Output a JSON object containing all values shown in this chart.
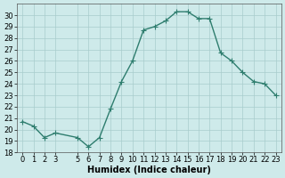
{
  "x": [
    0,
    1,
    2,
    3,
    5,
    6,
    7,
    8,
    9,
    10,
    11,
    12,
    13,
    14,
    15,
    16,
    17,
    18,
    19,
    20,
    21,
    22,
    23
  ],
  "y": [
    20.7,
    20.3,
    19.3,
    19.7,
    19.3,
    18.5,
    19.3,
    21.8,
    24.2,
    26.0,
    28.7,
    29.0,
    29.5,
    30.3,
    30.3,
    29.7,
    29.7,
    26.7,
    26.0,
    25.0,
    24.2,
    24.0,
    23.0
  ],
  "line_color": "#2e7d6e",
  "marker": "+",
  "marker_size": 4,
  "linewidth": 1.0,
  "xlabel": "Humidex (Indice chaleur)",
  "xlim": [
    -0.5,
    23.5
  ],
  "ylim": [
    18,
    31
  ],
  "yticks": [
    18,
    19,
    20,
    21,
    22,
    23,
    24,
    25,
    26,
    27,
    28,
    29,
    30
  ],
  "xtick_positions": [
    0,
    1,
    2,
    3,
    5,
    6,
    7,
    8,
    9,
    10,
    11,
    12,
    13,
    14,
    15,
    16,
    17,
    18,
    19,
    20,
    21,
    22,
    23
  ],
  "xtick_labels": [
    "0",
    "1",
    "2",
    "3",
    "5",
    "6",
    "7",
    "8",
    "9",
    "10",
    "11",
    "12",
    "13",
    "14",
    "15",
    "16",
    "17",
    "18",
    "19",
    "20",
    "21",
    "22",
    "23"
  ],
  "bg_color": "#ceeaea",
  "grid_color": "#a8cccc",
  "label_fontsize": 7,
  "tick_fontsize": 6
}
